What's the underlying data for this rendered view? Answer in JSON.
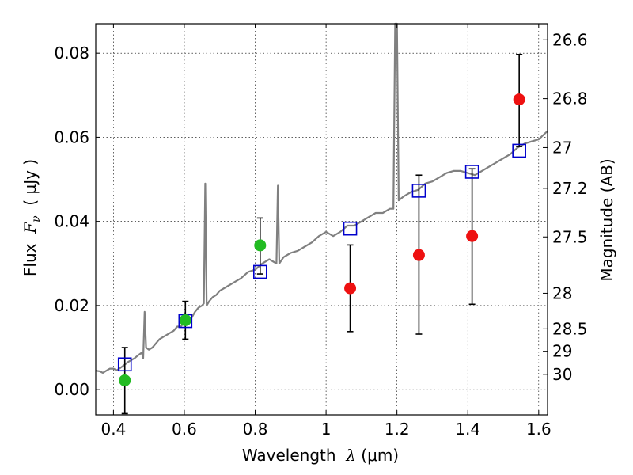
{
  "chart_data": {
    "type": "scatter",
    "title": "",
    "xlabel": {
      "prefix": "Wavelength  ",
      "symbol": "λ",
      "suffix": " (μm)"
    },
    "ylabel": {
      "prefix": "Flux  ",
      "symbol": "F",
      "subscript": "ν",
      "suffix": "  ( μJy )"
    },
    "y2label": "Magnitude (AB)",
    "xlim": [
      0.35,
      1.625
    ],
    "ylim": [
      -0.006,
      0.087
    ],
    "grid": true,
    "x_ticks": [
      {
        "value": 0.4,
        "label": "0.4"
      },
      {
        "value": 0.6,
        "label": "0.6"
      },
      {
        "value": 0.8,
        "label": "0.8"
      },
      {
        "value": 1.0,
        "label": "1"
      },
      {
        "value": 1.2,
        "label": "1.2"
      },
      {
        "value": 1.4,
        "label": "1.4"
      },
      {
        "value": 1.6,
        "label": "1.6"
      }
    ],
    "y_ticks": [
      {
        "value": 0.0,
        "label": "0.00"
      },
      {
        "value": 0.02,
        "label": "0.02"
      },
      {
        "value": 0.04,
        "label": "0.04"
      },
      {
        "value": 0.06,
        "label": "0.06"
      },
      {
        "value": 0.08,
        "label": "0.08"
      }
    ],
    "y2_ticks": [
      {
        "value": 26.6,
        "label": "26.6"
      },
      {
        "value": 26.8,
        "label": "26.8"
      },
      {
        "value": 27.0,
        "label": "27"
      },
      {
        "value": 27.2,
        "label": "27.2"
      },
      {
        "value": 27.5,
        "label": "27.5"
      },
      {
        "value": 28.0,
        "label": "28"
      },
      {
        "value": 28.5,
        "label": "28.5"
      },
      {
        "value": 29.0,
        "label": "29"
      },
      {
        "value": 30.0,
        "label": "30"
      }
    ],
    "series": [
      {
        "role": "template-spectrum",
        "type": "line",
        "color": "#808080",
        "points": [
          [
            0.35,
            0.0045
          ],
          [
            0.36,
            0.0044
          ],
          [
            0.37,
            0.004
          ],
          [
            0.38,
            0.0045
          ],
          [
            0.39,
            0.005
          ],
          [
            0.4,
            0.005
          ],
          [
            0.41,
            0.0046
          ],
          [
            0.42,
            0.0052
          ],
          [
            0.43,
            0.0058
          ],
          [
            0.44,
            0.0065
          ],
          [
            0.45,
            0.007
          ],
          [
            0.46,
            0.0075
          ],
          [
            0.47,
            0.0082
          ],
          [
            0.48,
            0.0088
          ],
          [
            0.484,
            0.0075
          ],
          [
            0.488,
            0.0185
          ],
          [
            0.492,
            0.01
          ],
          [
            0.5,
            0.0095
          ],
          [
            0.51,
            0.01
          ],
          [
            0.52,
            0.011
          ],
          [
            0.53,
            0.012
          ],
          [
            0.54,
            0.0125
          ],
          [
            0.55,
            0.013
          ],
          [
            0.56,
            0.0135
          ],
          [
            0.57,
            0.014
          ],
          [
            0.58,
            0.015
          ],
          [
            0.59,
            0.015
          ],
          [
            0.6,
            0.016
          ],
          [
            0.61,
            0.0165
          ],
          [
            0.62,
            0.017
          ],
          [
            0.63,
            0.0185
          ],
          [
            0.64,
            0.0195
          ],
          [
            0.65,
            0.02
          ],
          [
            0.655,
            0.0205
          ],
          [
            0.659,
            0.049
          ],
          [
            0.663,
            0.02
          ],
          [
            0.67,
            0.021
          ],
          [
            0.68,
            0.022
          ],
          [
            0.69,
            0.0225
          ],
          [
            0.7,
            0.0235
          ],
          [
            0.72,
            0.0245
          ],
          [
            0.74,
            0.0255
          ],
          [
            0.76,
            0.0265
          ],
          [
            0.78,
            0.028
          ],
          [
            0.8,
            0.0285
          ],
          [
            0.82,
            0.03
          ],
          [
            0.84,
            0.031
          ],
          [
            0.86,
            0.03
          ],
          [
            0.864,
            0.0485
          ],
          [
            0.868,
            0.03
          ],
          [
            0.88,
            0.0315
          ],
          [
            0.9,
            0.0325
          ],
          [
            0.92,
            0.033
          ],
          [
            0.94,
            0.034
          ],
          [
            0.96,
            0.035
          ],
          [
            0.98,
            0.0365
          ],
          [
            1.0,
            0.0375
          ],
          [
            1.02,
            0.0365
          ],
          [
            1.04,
            0.0375
          ],
          [
            1.06,
            0.039
          ],
          [
            1.08,
            0.039
          ],
          [
            1.1,
            0.04
          ],
          [
            1.12,
            0.041
          ],
          [
            1.14,
            0.042
          ],
          [
            1.16,
            0.042
          ],
          [
            1.18,
            0.043
          ],
          [
            1.19,
            0.043
          ],
          [
            1.195,
            0.087
          ],
          [
            1.2,
            0.087
          ],
          [
            1.205,
            0.045
          ],
          [
            1.22,
            0.046
          ],
          [
            1.24,
            0.047
          ],
          [
            1.26,
            0.0475
          ],
          [
            1.28,
            0.049
          ],
          [
            1.3,
            0.0495
          ],
          [
            1.32,
            0.0505
          ],
          [
            1.34,
            0.0515
          ],
          [
            1.36,
            0.052
          ],
          [
            1.38,
            0.052
          ],
          [
            1.4,
            0.0515
          ],
          [
            1.42,
            0.051
          ],
          [
            1.44,
            0.052
          ],
          [
            1.46,
            0.053
          ],
          [
            1.48,
            0.054
          ],
          [
            1.5,
            0.055
          ],
          [
            1.52,
            0.056
          ],
          [
            1.54,
            0.0575
          ],
          [
            1.56,
            0.0585
          ],
          [
            1.58,
            0.059
          ],
          [
            1.6,
            0.0595
          ],
          [
            1.625,
            0.0615
          ]
        ]
      },
      {
        "role": "model-photometry",
        "type": "scatter",
        "marker": "open-square",
        "color": "#0000cc",
        "points": [
          [
            0.432,
            0.006
          ],
          [
            0.603,
            0.0163
          ],
          [
            0.814,
            0.028
          ],
          [
            1.068,
            0.0383
          ],
          [
            1.262,
            0.0473
          ],
          [
            1.412,
            0.0518
          ],
          [
            1.545,
            0.0568
          ]
        ]
      },
      {
        "role": "observed-detections",
        "type": "scatter",
        "marker": "filled-circle",
        "color": "#22bb22",
        "points": [
          {
            "x": 0.432,
            "y": 0.0022,
            "lo": -0.0057,
            "hi": 0.01
          },
          {
            "x": 0.603,
            "y": 0.0165,
            "lo": 0.012,
            "hi": 0.021
          },
          {
            "x": 0.814,
            "y": 0.0343,
            "lo": 0.0275,
            "hi": 0.0408
          }
        ]
      },
      {
        "role": "observed-ir",
        "type": "scatter",
        "marker": "filled-circle",
        "color": "#ee1111",
        "points": [
          {
            "x": 1.068,
            "y": 0.0241,
            "lo": 0.0138,
            "hi": 0.0344
          },
          {
            "x": 1.262,
            "y": 0.032,
            "lo": 0.0132,
            "hi": 0.051
          },
          {
            "x": 1.412,
            "y": 0.0365,
            "lo": 0.0203,
            "hi": 0.0525
          },
          {
            "x": 1.545,
            "y": 0.069,
            "lo": 0.0578,
            "hi": 0.0797
          }
        ]
      }
    ]
  }
}
